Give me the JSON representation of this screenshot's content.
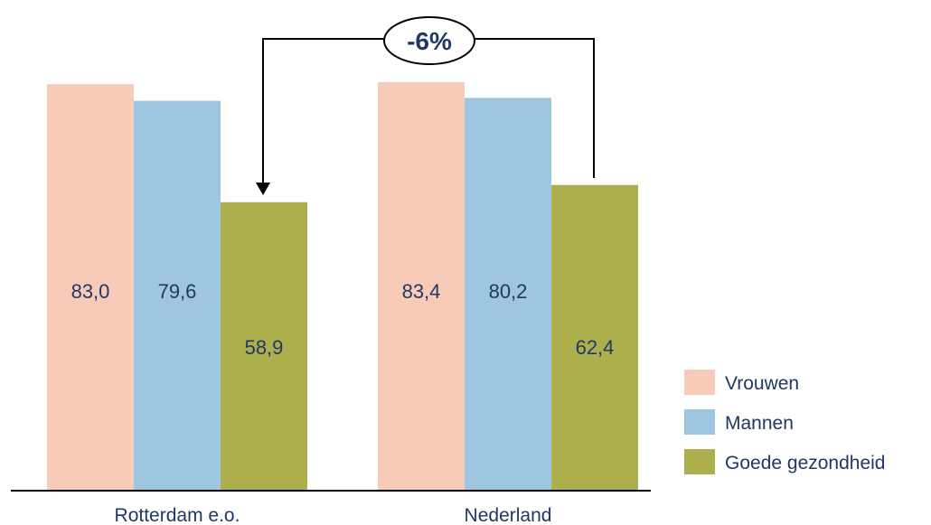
{
  "chart_data": {
    "type": "bar",
    "categories": [
      "Rotterdam e.o.",
      "Nederland"
    ],
    "series": [
      {
        "name": "Vrouwen",
        "values": [
          83.0,
          83.4
        ],
        "labels": [
          "83,0",
          "83,4"
        ],
        "color": "#f8cbb8"
      },
      {
        "name": "Mannen",
        "values": [
          79.6,
          80.2
        ],
        "labels": [
          "79,6",
          "80,2"
        ],
        "color": "#9fc6e0"
      },
      {
        "name": "Goede gezondheid",
        "values": [
          58.9,
          62.4
        ],
        "labels": [
          "58,9",
          "62,4"
        ],
        "color": "#acaf4b"
      }
    ],
    "ylim": [
      0,
      95
    ],
    "grid": false,
    "legend_position": "bottom-right",
    "annotation": {
      "text": "-6%",
      "from": "Nederland / Goede gezondheid",
      "to": "Rotterdam e.o. / Goede gezondheid"
    },
    "text_color": "#1f3864",
    "axis_color": "#000000"
  }
}
